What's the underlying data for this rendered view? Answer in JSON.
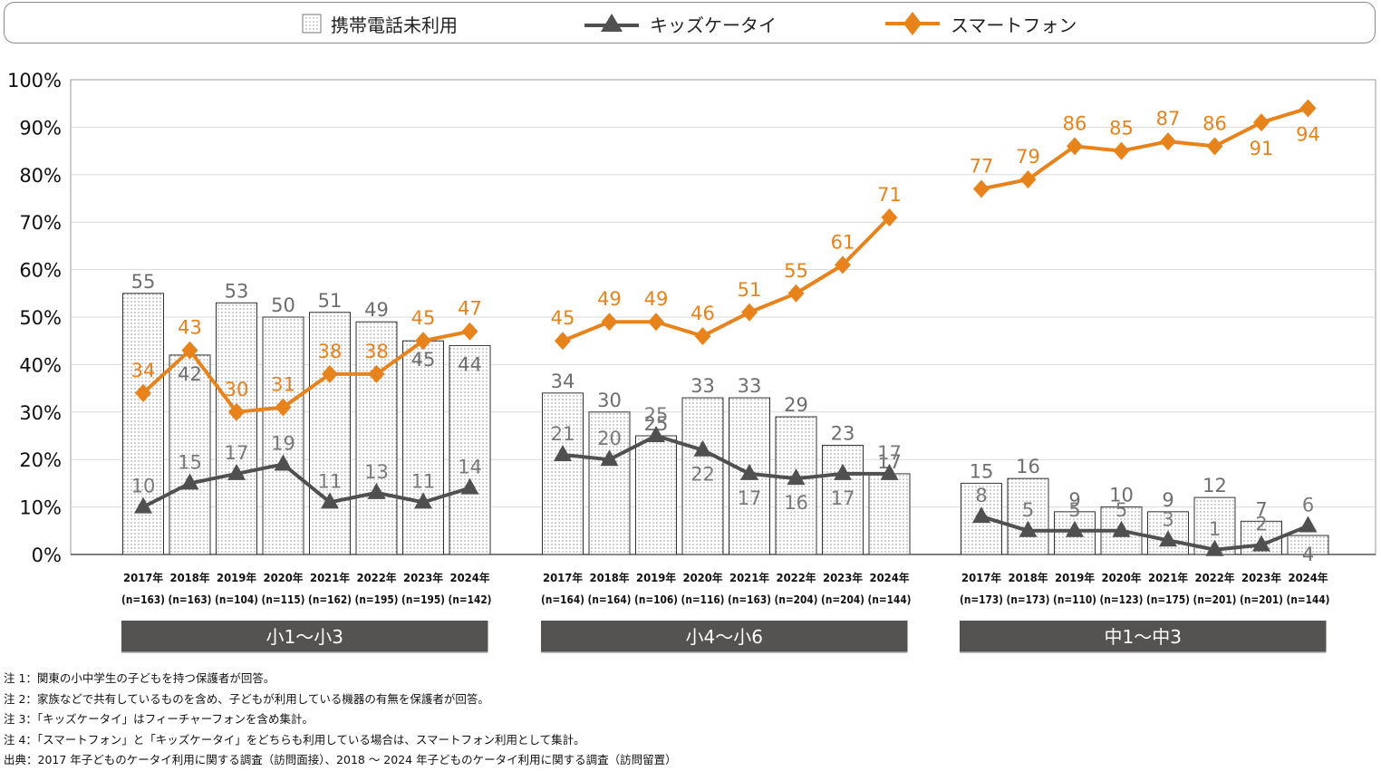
{
  "legend": {
    "items": [
      {
        "label": "携帯電話未利用",
        "marker": "dotted-bar-swatch"
      },
      {
        "label": "キッズケータイ",
        "marker": "triangle-line",
        "color": "#505050"
      },
      {
        "label": "スマートフォン",
        "marker": "diamond-line",
        "color": "#E8821A"
      }
    ]
  },
  "chart_data": {
    "type": "bar",
    "title": "",
    "xlabel": "",
    "ylabel": "",
    "ylim": [
      0,
      100
    ],
    "y_ticks": [
      "0%",
      "10%",
      "20%",
      "30%",
      "40%",
      "50%",
      "60%",
      "70%",
      "80%",
      "90%",
      "100%"
    ],
    "grid": true,
    "legend_position": "top",
    "colors": {
      "no_phone": "#ffffff",
      "kids_phone": "#505050",
      "smartphone": "#E8821A",
      "group_label_bg": "#545352"
    },
    "groups": [
      {
        "label": "小1～小3",
        "categories": [
          {
            "year": "2017年",
            "n": "(n=163)"
          },
          {
            "year": "2018年",
            "n": "(n=163)"
          },
          {
            "year": "2019年",
            "n": "(n=104)"
          },
          {
            "year": "2020年",
            "n": "(n=115)"
          },
          {
            "year": "2021年",
            "n": "(n=162)"
          },
          {
            "year": "2022年",
            "n": "(n=195)"
          },
          {
            "year": "2023年",
            "n": "(n=195)"
          },
          {
            "year": "2024年",
            "n": "(n=142)"
          }
        ],
        "series": [
          {
            "name": "携帯電話未利用",
            "type": "bar",
            "values": [
              55,
              42,
              53,
              50,
              51,
              49,
              45,
              44
            ]
          },
          {
            "name": "キッズケータイ",
            "type": "line",
            "values": [
              10,
              15,
              17,
              19,
              11,
              13,
              11,
              14
            ]
          },
          {
            "name": "スマートフォン",
            "type": "line",
            "values": [
              34,
              43,
              30,
              31,
              38,
              38,
              45,
              47
            ]
          }
        ]
      },
      {
        "label": "小4～小6",
        "categories": [
          {
            "year": "2017年",
            "n": "(n=164)"
          },
          {
            "year": "2018年",
            "n": "(n=164)"
          },
          {
            "year": "2019年",
            "n": "(n=106)"
          },
          {
            "year": "2020年",
            "n": "(n=116)"
          },
          {
            "year": "2021年",
            "n": "(n=163)"
          },
          {
            "year": "2022年",
            "n": "(n=204)"
          },
          {
            "year": "2023年",
            "n": "(n=204)"
          },
          {
            "year": "2024年",
            "n": "(n=144)"
          }
        ],
        "series": [
          {
            "name": "携帯電話未利用",
            "type": "bar",
            "values": [
              34,
              30,
              25,
              33,
              33,
              29,
              23,
              17
            ]
          },
          {
            "name": "キッズケータイ",
            "type": "line",
            "values": [
              21,
              20,
              25,
              22,
              17,
              16,
              17,
              17
            ]
          },
          {
            "name": "スマートフォン",
            "type": "line",
            "values": [
              45,
              49,
              49,
              46,
              51,
              55,
              61,
              71
            ]
          }
        ]
      },
      {
        "label": "中1～中3",
        "categories": [
          {
            "year": "2017年",
            "n": "(n=173)"
          },
          {
            "year": "2018年",
            "n": "(n=173)"
          },
          {
            "year": "2019年",
            "n": "(n=110)"
          },
          {
            "year": "2020年",
            "n": "(n=123)"
          },
          {
            "year": "2021年",
            "n": "(n=175)"
          },
          {
            "year": "2022年",
            "n": "(n=201)"
          },
          {
            "year": "2023年",
            "n": "(n=201)"
          },
          {
            "year": "2024年",
            "n": "(n=144)"
          }
        ],
        "series": [
          {
            "name": "携帯電話未利用",
            "type": "bar",
            "values": [
              15,
              16,
              9,
              10,
              9,
              12,
              7,
              4
            ]
          },
          {
            "name": "キッズケータイ",
            "type": "line",
            "values": [
              8,
              5,
              5,
              5,
              3,
              1,
              2,
              6
            ]
          },
          {
            "name": "スマートフォン",
            "type": "line",
            "values": [
              77,
              79,
              86,
              85,
              87,
              86,
              91,
              94
            ]
          }
        ]
      }
    ],
    "bar_label_placement": {
      "comment": "label above (top) or inside bar; kids label above/below marker",
      "no_phone": [
        [
          "top",
          "inside",
          "top",
          "top",
          "top",
          "top",
          "inside",
          "inside"
        ],
        [
          "top",
          "top",
          "top",
          "top",
          "top",
          "top",
          "top",
          "top"
        ],
        [
          "top",
          "top",
          "top",
          "top",
          "top",
          "top",
          "top",
          "inside"
        ]
      ],
      "kids": [
        [
          "above",
          "above",
          "above",
          "above",
          "above",
          "above",
          "above",
          "above"
        ],
        [
          "above",
          "above",
          "above",
          "below",
          "below",
          "below",
          "below",
          "above"
        ],
        [
          "above",
          "above",
          "above",
          "above",
          "above",
          "above",
          "above",
          "above"
        ]
      ],
      "smart": [
        [
          "above",
          "above",
          "above",
          "above",
          "above",
          "above",
          "above",
          "above"
        ],
        [
          "above",
          "above",
          "above",
          "above",
          "above",
          "above",
          "above",
          "above"
        ],
        [
          "above",
          "above",
          "above",
          "above",
          "above",
          "above",
          "below",
          "below"
        ]
      ]
    }
  },
  "notes": [
    "注 1：関東の小中学生の子どもを持つ保護者が回答。",
    "注 2：家族などで共有しているものを含め、子どもが利用している機器の有無を保護者が回答。",
    "注 3：「キッズケータイ」はフィーチャーフォンを含め集計。",
    "注 4：「スマートフォン」と「キッズケータイ」をどちらも利用している場合は、スマートフォン利用として集計。",
    "出典：2017 年子どものケータイ利用に関する調査（訪問面接）、2018 ～ 2024 年子どものケータイ利用に関する調査（訪問留置）"
  ]
}
